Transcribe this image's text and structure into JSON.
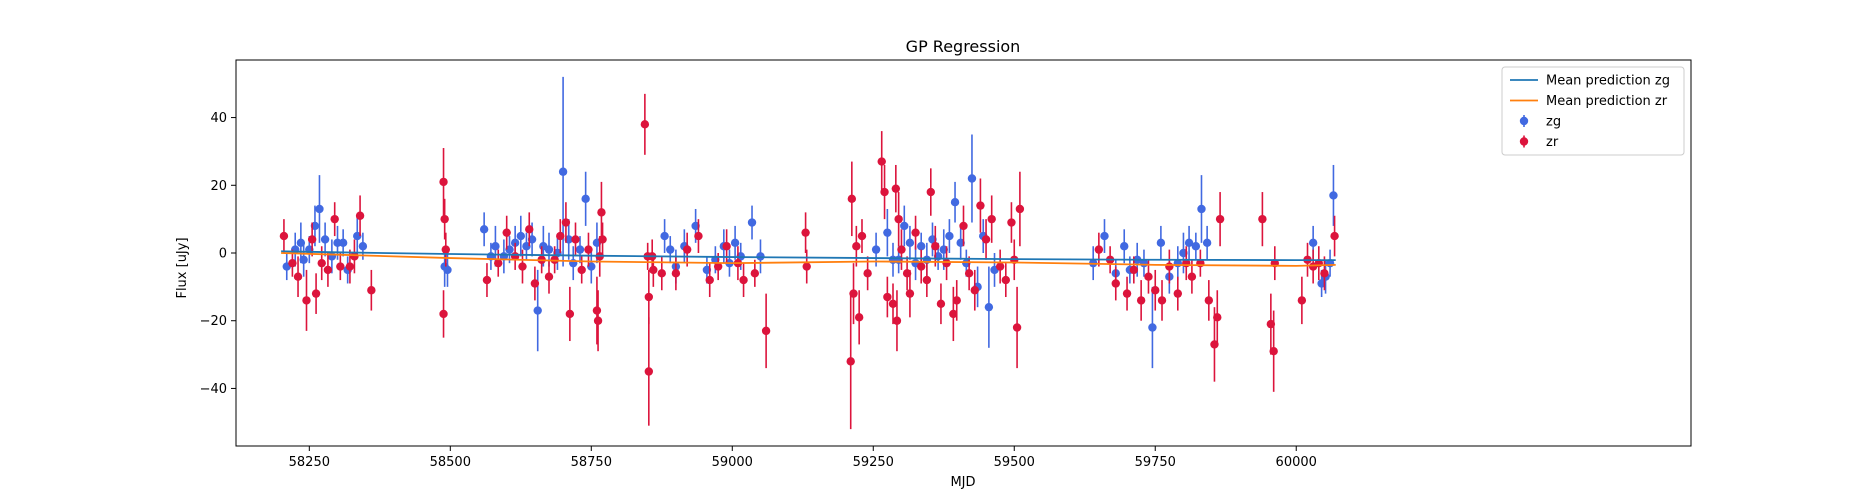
{
  "chart_data": {
    "type": "scatter",
    "title": "GP Regression",
    "xlabel": "MJD",
    "ylabel": "Flux [uJy]",
    "xlim": [
      58120,
      60700
    ],
    "ylim": [
      -57,
      57
    ],
    "x_ticks": [
      58250,
      58500,
      58750,
      59000,
      59250,
      59500,
      59750,
      60000
    ],
    "y_ticks": [
      -40,
      -20,
      0,
      20,
      40
    ],
    "grid": false,
    "legend_position": "top-right",
    "colors": {
      "zg_line": "#1f77b4",
      "zr_line": "#ff7f0e",
      "zg_points": "#4169e1",
      "zr_points": "#dc143c"
    },
    "lines": [
      {
        "name": "Mean prediction zg",
        "x": [
          58200,
          58300,
          58500,
          58750,
          59000,
          59250,
          59500,
          59750,
          60000,
          60070
        ],
        "y": [
          0.5,
          0.2,
          -0.3,
          -0.8,
          -1.2,
          -1.5,
          -1.8,
          -2.0,
          -2.1,
          -2.1
        ]
      },
      {
        "name": "Mean prediction zr",
        "x": [
          58200,
          58300,
          58500,
          58750,
          59000,
          59250,
          59500,
          59750,
          60000,
          60070
        ],
        "y": [
          0.0,
          -0.5,
          -1.5,
          -2.5,
          -3.0,
          -2.5,
          -2.8,
          -3.5,
          -3.8,
          -3.5
        ]
      }
    ],
    "series": [
      {
        "name": "zg",
        "points": [
          [
            58210,
            -4,
            4
          ],
          [
            58225,
            1,
            5
          ],
          [
            58235,
            3,
            6
          ],
          [
            58240,
            -2,
            5
          ],
          [
            58250,
            1,
            4
          ],
          [
            58260,
            8,
            6
          ],
          [
            58268,
            13,
            10
          ],
          [
            58278,
            4,
            5
          ],
          [
            58290,
            -1,
            5
          ],
          [
            58300,
            3,
            5
          ],
          [
            58310,
            3,
            4
          ],
          [
            58318,
            -5,
            4
          ],
          [
            58335,
            5,
            6
          ],
          [
            58345,
            2,
            4
          ],
          [
            58490,
            -4,
            6
          ],
          [
            58495,
            -5,
            5
          ],
          [
            58560,
            7,
            5
          ],
          [
            58572,
            -1,
            4
          ],
          [
            58580,
            2,
            6
          ],
          [
            58595,
            -1,
            5
          ],
          [
            58605,
            1,
            4
          ],
          [
            58615,
            3,
            5
          ],
          [
            58625,
            5,
            6
          ],
          [
            58635,
            2,
            4
          ],
          [
            58645,
            4,
            5
          ],
          [
            58655,
            -17,
            12
          ],
          [
            58665,
            2,
            6
          ],
          [
            58675,
            1,
            5
          ],
          [
            58690,
            0,
            5
          ],
          [
            58700,
            24,
            28
          ],
          [
            58710,
            4,
            6
          ],
          [
            58718,
            -3,
            5
          ],
          [
            58730,
            1,
            4
          ],
          [
            58740,
            16,
            8
          ],
          [
            58750,
            -4,
            5
          ],
          [
            58760,
            3,
            6
          ],
          [
            58880,
            5,
            5
          ],
          [
            58890,
            1,
            4
          ],
          [
            58900,
            -4,
            5
          ],
          [
            58915,
            2,
            5
          ],
          [
            58935,
            8,
            5
          ],
          [
            58955,
            -5,
            4
          ],
          [
            58970,
            -2,
            4
          ],
          [
            58985,
            2,
            5
          ],
          [
            58995,
            -3,
            4
          ],
          [
            59005,
            3,
            5
          ],
          [
            59015,
            -1,
            4
          ],
          [
            59035,
            9,
            5
          ],
          [
            59050,
            -1,
            5
          ],
          [
            59255,
            1,
            5
          ],
          [
            59275,
            6,
            7
          ],
          [
            59285,
            -2,
            5
          ],
          [
            59295,
            -2,
            4
          ],
          [
            59305,
            8,
            6
          ],
          [
            59315,
            3,
            5
          ],
          [
            59325,
            -3,
            5
          ],
          [
            59335,
            2,
            4
          ],
          [
            59345,
            -2,
            5
          ],
          [
            59355,
            4,
            5
          ],
          [
            59365,
            -1,
            4
          ],
          [
            59375,
            1,
            6
          ],
          [
            59385,
            5,
            5
          ],
          [
            59395,
            15,
            6
          ],
          [
            59405,
            3,
            5
          ],
          [
            59415,
            -3,
            4
          ],
          [
            59425,
            22,
            13
          ],
          [
            59435,
            -10,
            6
          ],
          [
            59445,
            5,
            5
          ],
          [
            59455,
            -16,
            12
          ],
          [
            59465,
            -5,
            5
          ],
          [
            59640,
            -3,
            5
          ],
          [
            59660,
            5,
            5
          ],
          [
            59680,
            -6,
            4
          ],
          [
            59695,
            2,
            5
          ],
          [
            59705,
            -5,
            4
          ],
          [
            59718,
            -2,
            5
          ],
          [
            59730,
            -3,
            4
          ],
          [
            59745,
            -22,
            12
          ],
          [
            59760,
            3,
            5
          ],
          [
            59775,
            -7,
            5
          ],
          [
            59790,
            -3,
            5
          ],
          [
            59800,
            0,
            6
          ],
          [
            59810,
            3,
            5
          ],
          [
            59822,
            2,
            4
          ],
          [
            59832,
            13,
            10
          ],
          [
            59842,
            3,
            5
          ],
          [
            60030,
            3,
            5
          ],
          [
            60045,
            -9,
            4
          ],
          [
            60052,
            -7,
            5
          ],
          [
            60060,
            -3,
            4
          ],
          [
            60066,
            17,
            9
          ]
        ]
      },
      {
        "name": "zr",
        "points": [
          [
            58205,
            5,
            5
          ],
          [
            58220,
            -3,
            4
          ],
          [
            58230,
            -7,
            6
          ],
          [
            58245,
            -14,
            9
          ],
          [
            58255,
            4,
            5
          ],
          [
            58262,
            -12,
            6
          ],
          [
            58272,
            -3,
            5
          ],
          [
            58283,
            -5,
            5
          ],
          [
            58295,
            10,
            5
          ],
          [
            58305,
            -4,
            4
          ],
          [
            58322,
            -4,
            5
          ],
          [
            58330,
            -1,
            5
          ],
          [
            58340,
            11,
            6
          ],
          [
            58360,
            -11,
            6
          ],
          [
            58488,
            21,
            10
          ],
          [
            58490,
            10,
            6
          ],
          [
            58488,
            -18,
            7
          ],
          [
            58492,
            1,
            5
          ],
          [
            58565,
            -8,
            5
          ],
          [
            58585,
            -3,
            4
          ],
          [
            58600,
            6,
            5
          ],
          [
            58615,
            -1,
            4
          ],
          [
            58628,
            -4,
            5
          ],
          [
            58640,
            7,
            5
          ],
          [
            58650,
            -9,
            5
          ],
          [
            58662,
            -2,
            4
          ],
          [
            58675,
            -7,
            5
          ],
          [
            58685,
            -2,
            4
          ],
          [
            58695,
            5,
            5
          ],
          [
            58705,
            9,
            6
          ],
          [
            58712,
            -18,
            8
          ],
          [
            58722,
            4,
            5
          ],
          [
            58733,
            -5,
            4
          ],
          [
            58745,
            1,
            5
          ],
          [
            58760,
            -17,
            10
          ],
          [
            58762,
            -20,
            9
          ],
          [
            58765,
            -1,
            6
          ],
          [
            58768,
            12,
            9
          ],
          [
            58770,
            4,
            5
          ],
          [
            58850,
            -1,
            4
          ],
          [
            58852,
            -13,
            8
          ],
          [
            58852,
            -35,
            16
          ],
          [
            58845,
            38,
            9
          ],
          [
            58858,
            -1,
            5
          ],
          [
            58860,
            -5,
            5
          ],
          [
            58875,
            -6,
            5
          ],
          [
            58900,
            -6,
            5
          ],
          [
            58920,
            1,
            5
          ],
          [
            58940,
            5,
            5
          ],
          [
            58960,
            -8,
            5
          ],
          [
            58975,
            -4,
            4
          ],
          [
            58990,
            2,
            5
          ],
          [
            59010,
            -3,
            5
          ],
          [
            59020,
            -8,
            5
          ],
          [
            59040,
            -6,
            4
          ],
          [
            59060,
            -23,
            11
          ],
          [
            59130,
            6,
            6
          ],
          [
            59132,
            -4,
            5
          ],
          [
            59210,
            -32,
            20
          ],
          [
            59212,
            16,
            11
          ],
          [
            59215,
            -12,
            9
          ],
          [
            59220,
            2,
            6
          ],
          [
            59225,
            -19,
            8
          ],
          [
            59230,
            5,
            5
          ],
          [
            59240,
            -6,
            5
          ],
          [
            59265,
            27,
            9
          ],
          [
            59270,
            18,
            8
          ],
          [
            59275,
            -13,
            6
          ],
          [
            59285,
            -15,
            6
          ],
          [
            59290,
            19,
            7
          ],
          [
            59292,
            -20,
            9
          ],
          [
            59295,
            10,
            8
          ],
          [
            59300,
            1,
            6
          ],
          [
            59310,
            -6,
            5
          ],
          [
            59315,
            -12,
            7
          ],
          [
            59325,
            6,
            5
          ],
          [
            59335,
            -4,
            5
          ],
          [
            59345,
            -8,
            5
          ],
          [
            59352,
            18,
            7
          ],
          [
            59360,
            2,
            6
          ],
          [
            59370,
            -15,
            6
          ],
          [
            59380,
            -3,
            5
          ],
          [
            59392,
            -18,
            8
          ],
          [
            59398,
            -14,
            6
          ],
          [
            59410,
            8,
            6
          ],
          [
            59420,
            -6,
            5
          ],
          [
            59430,
            -11,
            6
          ],
          [
            59440,
            14,
            8
          ],
          [
            59450,
            4,
            6
          ],
          [
            59460,
            10,
            7
          ],
          [
            59475,
            -4,
            5
          ],
          [
            59485,
            -8,
            5
          ],
          [
            59495,
            9,
            6
          ],
          [
            59500,
            -2,
            6
          ],
          [
            59505,
            -22,
            12
          ],
          [
            59510,
            13,
            11
          ],
          [
            59650,
            1,
            5
          ],
          [
            59670,
            -2,
            4
          ],
          [
            59680,
            -9,
            5
          ],
          [
            59700,
            -12,
            5
          ],
          [
            59712,
            -5,
            4
          ],
          [
            59725,
            -14,
            6
          ],
          [
            59738,
            -7,
            5
          ],
          [
            59750,
            -11,
            6
          ],
          [
            59762,
            -14,
            6
          ],
          [
            59775,
            -4,
            5
          ],
          [
            59790,
            -12,
            5
          ],
          [
            59805,
            -3,
            5
          ],
          [
            59815,
            -7,
            5
          ],
          [
            59830,
            -3,
            4
          ],
          [
            59845,
            -14,
            6
          ],
          [
            59855,
            -27,
            11
          ],
          [
            59860,
            -19,
            8
          ],
          [
            59865,
            10,
            8
          ],
          [
            59940,
            10,
            8
          ],
          [
            59955,
            -21,
            9
          ],
          [
            59960,
            -29,
            12
          ],
          [
            59962,
            -3,
            5
          ],
          [
            60010,
            -14,
            7
          ],
          [
            60020,
            -2,
            5
          ],
          [
            60030,
            -4,
            5
          ],
          [
            60040,
            -3,
            5
          ],
          [
            60050,
            -6,
            5
          ],
          [
            60068,
            5,
            6
          ]
        ]
      }
    ]
  }
}
